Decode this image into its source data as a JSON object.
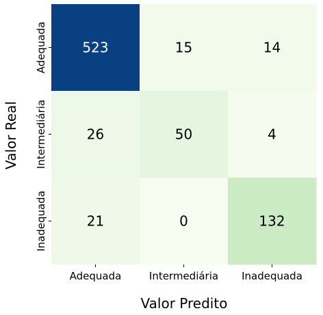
{
  "chart_data": {
    "type": "heatmap",
    "title": "",
    "xlabel": "Valor Predito",
    "ylabel": "Valor Real",
    "x_categories": [
      "Adequada",
      "Intermediária",
      "Inadequada"
    ],
    "y_categories": [
      "Adequada",
      "Intermediária",
      "Inadequada"
    ],
    "values": [
      [
        523,
        15,
        14
      ],
      [
        26,
        50,
        4
      ],
      [
        21,
        0,
        132
      ]
    ],
    "colormap": "GnBu",
    "colorbar": false,
    "grid": false,
    "annotated": true
  },
  "colors": {
    "high": "#084081",
    "low": "#f7fcf0",
    "text_dark": "#000000",
    "text_light": "#ffffff"
  }
}
